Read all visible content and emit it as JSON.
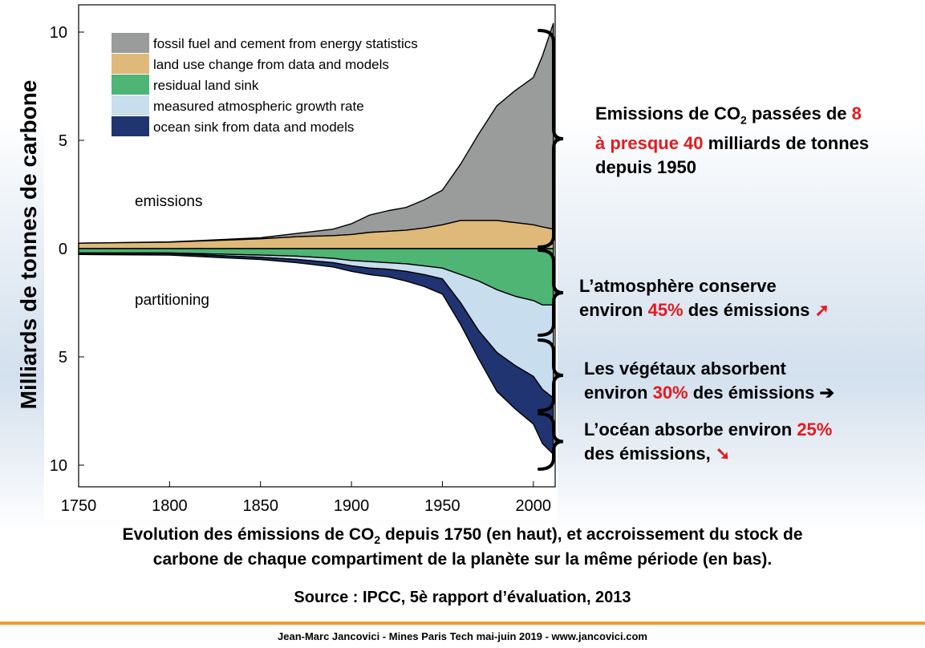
{
  "chart_data": {
    "type": "area",
    "ylabel": "Milliards de tonnes de carbone",
    "x_ticks": [
      "1750",
      "1800",
      "1850",
      "1900",
      "1950",
      "2000"
    ],
    "y_ticks": [
      "10",
      "5",
      "0",
      "5",
      "10"
    ],
    "xlim": [
      1750,
      2012
    ],
    "ylim": [
      -10.5,
      10.5
    ],
    "x": [
      1750,
      1800,
      1850,
      1870,
      1890,
      1900,
      1910,
      1920,
      1930,
      1940,
      1950,
      1960,
      1970,
      1980,
      1990,
      2000,
      2005,
      2011
    ],
    "series": [
      {
        "name": "fossil fuel and cement from energy statistics",
        "color": "#9a9c9b",
        "values": [
          0.0,
          0.01,
          0.05,
          0.15,
          0.3,
          0.5,
          0.8,
          0.95,
          1.05,
          1.3,
          1.6,
          2.6,
          4.0,
          5.3,
          6.1,
          6.8,
          7.9,
          9.5
        ]
      },
      {
        "name": "land use change from data and models",
        "color": "#deb97a",
        "values": [
          0.25,
          0.3,
          0.45,
          0.55,
          0.6,
          0.65,
          0.75,
          0.8,
          0.85,
          0.95,
          1.1,
          1.3,
          1.3,
          1.3,
          1.2,
          1.1,
          1.0,
          0.9
        ]
      },
      {
        "name": "residual land sink",
        "color": "#4eb575",
        "values": [
          -0.2,
          -0.2,
          -0.3,
          -0.35,
          -0.45,
          -0.55,
          -0.6,
          -0.65,
          -0.7,
          -0.8,
          -0.9,
          -1.2,
          -1.5,
          -1.9,
          -2.2,
          -2.4,
          -2.6,
          -2.6
        ]
      },
      {
        "name": "measured atmospheric growth rate",
        "color": "#c8dded",
        "values": [
          -0.02,
          -0.03,
          -0.1,
          -0.15,
          -0.2,
          -0.25,
          -0.3,
          -0.3,
          -0.35,
          -0.4,
          -0.5,
          -1.3,
          -2.3,
          -2.9,
          -3.2,
          -3.5,
          -3.9,
          -4.3
        ]
      },
      {
        "name": "ocean sink from data and models",
        "color": "#1f3470",
        "values": [
          -0.05,
          -0.07,
          -0.1,
          -0.15,
          -0.2,
          -0.25,
          -0.3,
          -0.35,
          -0.45,
          -0.55,
          -0.7,
          -1.0,
          -1.3,
          -1.8,
          -2.0,
          -2.2,
          -2.5,
          -2.6
        ]
      }
    ],
    "annotations": [
      "emissions",
      "partitioning"
    ]
  },
  "annotations": {
    "emissions": {
      "part1": "Emissions de CO",
      "sub": "2",
      "part2": " passées de ",
      "red1": "8",
      "red2": "à presque 40",
      "part3": " milliards de tonnes",
      "part4": "depuis 1950"
    },
    "atmosphere": {
      "line1": "L’atmosphère conserve",
      "pre": "environ ",
      "red": "45%",
      "post": " des émissions ",
      "arrow": "➚"
    },
    "vegetation": {
      "line1": "Les végétaux absorbent",
      "pre": "environ ",
      "red": "30%",
      "post": " des émissions ",
      "arrow": "➔"
    },
    "ocean": {
      "pre": "L’océan absorbe environ ",
      "red": "25%",
      "line2": "des émissions, ",
      "arrow": "➘"
    }
  },
  "caption": {
    "line1_pre": "Evolution des émissions de CO",
    "line1_sub": "2",
    "line1_post": " depuis 1750 (en haut), et accroissement du stock de",
    "line2": "carbone de chaque compartiment de la planète sur la même période (en bas).",
    "source": "Source : IPCC, 5è rapport d’évaluation, 2013"
  },
  "footer": "Jean-Marc Jancovici - Mines Paris Tech mai-juin 2019 - www.jancovici.com",
  "colors": {
    "red_accent": "#e5191e",
    "footer_rule": "#f39a2b"
  }
}
